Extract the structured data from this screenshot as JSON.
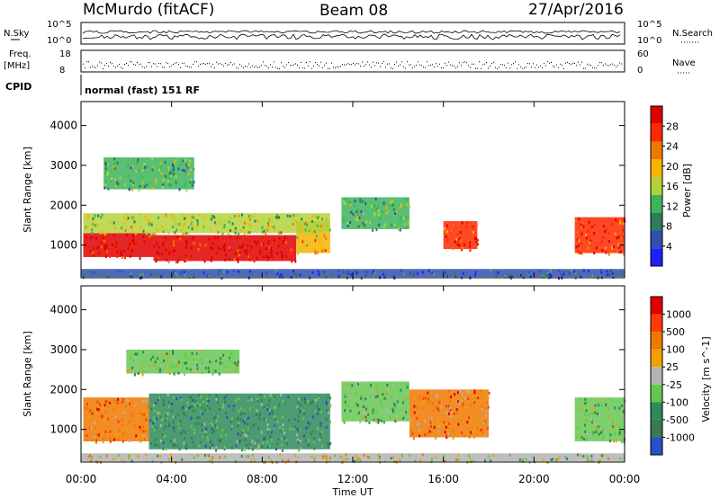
{
  "header": {
    "station": "McMurdo (fitACF)",
    "beam": "Beam 08",
    "date": "27/Apr/2016"
  },
  "status_panels": {
    "nsky_label": "N.Sky",
    "nsearch_label": "N.Search",
    "nsky_ticks": [
      "10^5",
      "10^0"
    ],
    "nsearch_ticks": [
      "10^5",
      "10^0"
    ],
    "freq_label": "Freq.",
    "freq_unit": "[MHz]",
    "freq_ticks": [
      "18",
      "8"
    ],
    "nave_label": "Nave",
    "nave_ticks": [
      "60",
      "0"
    ],
    "cpid_label": "CPID",
    "cpid_text": "normal (fast) 151 RF"
  },
  "x_axis": {
    "label": "Time UT",
    "ticks": [
      "00:00",
      "04:00",
      "08:00",
      "12:00",
      "16:00",
      "20:00",
      "00:00"
    ]
  },
  "chart_data": [
    {
      "type": "heatmap",
      "panel": "power",
      "ylabel": "Slant Range [km]",
      "yticks": [
        1000,
        2000,
        3000,
        4000
      ],
      "ylim": [
        180,
        4600
      ],
      "xlim_hours": [
        0,
        24
      ],
      "colorbar": {
        "label": "Power [dB]",
        "ticks": [
          "28",
          "24",
          "20",
          "16",
          "12",
          "8",
          "4"
        ],
        "colors": [
          "#2020ff",
          "#3050b0",
          "#2e7d5a",
          "#3cb45a",
          "#b4d23c",
          "#f5b400",
          "#f07800",
          "#ff2800",
          "#e00000"
        ]
      },
      "regions": [
        {
          "t0": 0.1,
          "t1": 3.2,
          "r0": 700,
          "r1": 1300,
          "level": 8
        },
        {
          "t0": 3.2,
          "t1": 9.5,
          "r0": 600,
          "r1": 1250,
          "level": 8
        },
        {
          "t0": 9.5,
          "t1": 11.0,
          "r0": 800,
          "r1": 1600,
          "level": 5
        },
        {
          "t0": 0.1,
          "t1": 11.0,
          "r0": 1300,
          "r1": 1800,
          "level": 4
        },
        {
          "t0": 1.0,
          "t1": 5.0,
          "r0": 2400,
          "r1": 3200,
          "level": 3
        },
        {
          "t0": 11.5,
          "t1": 14.5,
          "r0": 1400,
          "r1": 2200,
          "level": 3
        },
        {
          "t0": 16.0,
          "t1": 17.5,
          "r0": 900,
          "r1": 1600,
          "level": 7
        },
        {
          "t0": 21.8,
          "t1": 24.0,
          "r0": 800,
          "r1": 1700,
          "level": 7
        },
        {
          "t0": 0.0,
          "t1": 24.0,
          "r0": 200,
          "r1": 400,
          "level": 1
        }
      ]
    },
    {
      "type": "heatmap",
      "panel": "velocity",
      "ylabel": "Slant Range [km]",
      "yticks": [
        1000,
        2000,
        3000,
        4000
      ],
      "ylim": [
        180,
        4600
      ],
      "xlim_hours": [
        0,
        24
      ],
      "colorbar": {
        "label": "Velocity [m s^-1]",
        "ticks": [
          "1000",
          "500",
          "100",
          "25",
          "-25",
          "-100",
          "-500",
          "-1000"
        ],
        "colors": [
          "#2850c8",
          "#3c7850",
          "#2e8a5a",
          "#64c850",
          "#b4b4b4",
          "#f0a000",
          "#f07800",
          "#ff3c00",
          "#e00000"
        ]
      },
      "regions": [
        {
          "t0": 0.1,
          "t1": 3.0,
          "r0": 700,
          "r1": 1800,
          "level": 6
        },
        {
          "t0": 3.0,
          "t1": 11.0,
          "r0": 500,
          "r1": 1900,
          "level": 2
        },
        {
          "t0": 2.0,
          "t1": 7.0,
          "r0": 2400,
          "r1": 3000,
          "level": 3
        },
        {
          "t0": 11.5,
          "t1": 14.5,
          "r0": 1200,
          "r1": 2200,
          "level": 3
        },
        {
          "t0": 14.5,
          "t1": 18.0,
          "r0": 800,
          "r1": 2000,
          "level": 6
        },
        {
          "t0": 21.8,
          "t1": 24.0,
          "r0": 700,
          "r1": 1800,
          "level": 3
        },
        {
          "t0": 0.0,
          "t1": 24.0,
          "r0": 200,
          "r1": 400,
          "level": 4
        }
      ]
    }
  ]
}
